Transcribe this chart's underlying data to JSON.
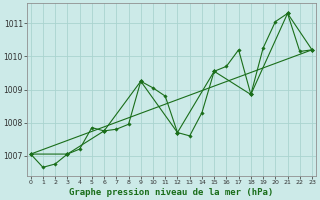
{
  "background_color": "#cceae8",
  "grid_color": "#aad4cf",
  "line_color": "#1a6e1a",
  "marker_color": "#1a6e1a",
  "xlabel": "Graphe pression niveau de la mer (hPa)",
  "xlabel_fontsize": 6.5,
  "ytick_labels": [
    "1007",
    "1008",
    "1009",
    "1010",
    "1011"
  ],
  "yticks": [
    1007,
    1008,
    1009,
    1010,
    1011
  ],
  "xticks": [
    0,
    1,
    2,
    3,
    4,
    5,
    6,
    7,
    8,
    9,
    10,
    11,
    12,
    13,
    14,
    15,
    16,
    17,
    18,
    19,
    20,
    21,
    22,
    23
  ],
  "xlim": [
    -0.3,
    23.3
  ],
  "ylim": [
    1006.4,
    1011.6
  ],
  "series1_x": [
    0,
    1,
    2,
    3,
    4,
    5,
    6,
    7,
    8,
    9,
    10,
    11,
    12,
    13,
    14,
    15,
    16,
    17,
    18,
    19,
    20,
    21,
    22,
    23
  ],
  "series1_y": [
    1007.05,
    1006.65,
    1006.75,
    1007.05,
    1007.2,
    1007.85,
    1007.75,
    1007.8,
    1007.95,
    1009.25,
    1009.05,
    1008.8,
    1007.7,
    1007.6,
    1008.3,
    1009.55,
    1009.7,
    1010.2,
    1008.85,
    1010.25,
    1011.05,
    1011.3,
    1010.15,
    1010.2
  ],
  "series2_x": [
    0,
    3,
    6,
    9,
    12,
    15,
    18,
    21,
    23
  ],
  "series2_y": [
    1007.05,
    1007.05,
    1007.75,
    1009.25,
    1007.7,
    1009.55,
    1008.85,
    1011.3,
    1010.2
  ],
  "series3_x": [
    0,
    23
  ],
  "series3_y": [
    1007.05,
    1010.2
  ]
}
